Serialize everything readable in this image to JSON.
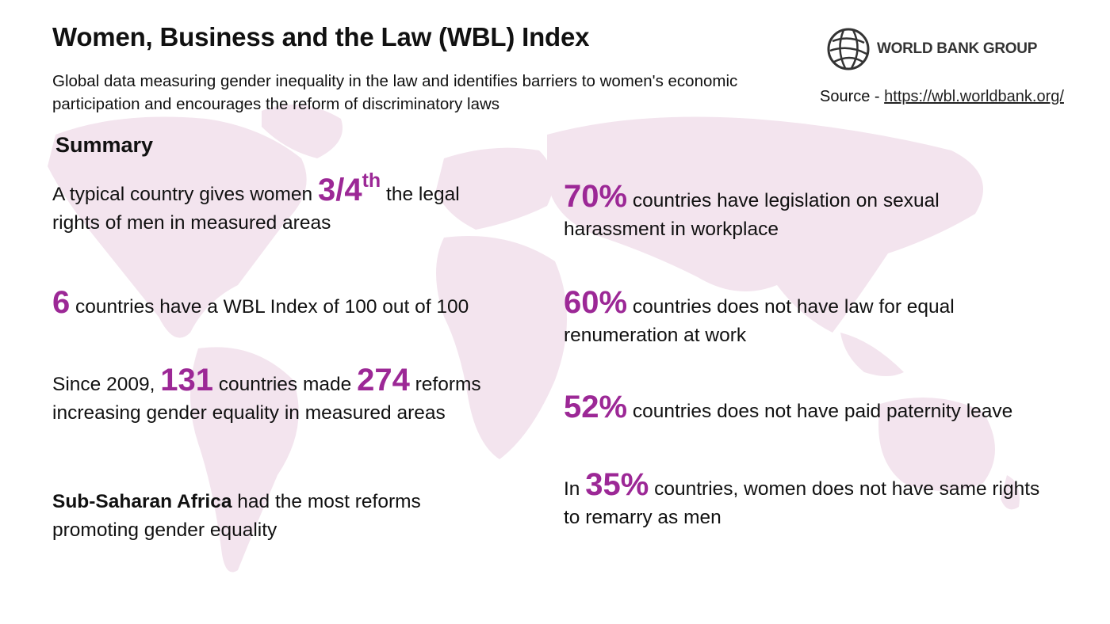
{
  "header": {
    "title": "Women, Business and the Law (WBL) Index",
    "subtitle": "Global data measuring gender inequality in the law and identifies barriers to women's economic participation and encourages the reform of discriminatory laws"
  },
  "logo": {
    "text": "WORLD BANK GROUP"
  },
  "source": {
    "label": "Source - ",
    "link": "https://wbl.worldbank.org/"
  },
  "summary": {
    "heading": "Summary"
  },
  "left_stats": [
    {
      "pre": "A typical country gives women ",
      "big": "3/4",
      "sup": "th",
      "post": " the legal rights of men in measured areas"
    },
    {
      "big": "6",
      "post": " countries have a WBL Index of 100 out of 100"
    },
    {
      "pre": "Since 2009, ",
      "big": "131",
      "mid": " countries made ",
      "big2": "274",
      "post": " reforms increasing gender equality in measured areas"
    },
    {
      "bold": "Sub-Saharan Africa",
      "post": " had the most reforms promoting gender equality"
    }
  ],
  "right_stats": [
    {
      "big": "70%",
      "post": " countries have legislation on sexual harassment in workplace"
    },
    {
      "big": "60%",
      "post": " countries does not have law for equal renumeration at work"
    },
    {
      "big": "52%",
      "post": " countries does not have paid paternity leave"
    },
    {
      "pre": "In ",
      "big": "35%",
      "post": " countries, women does not have same rights to remarry as men"
    }
  ],
  "colors": {
    "accent": "#9c2896",
    "map": "#f3e6ef"
  }
}
